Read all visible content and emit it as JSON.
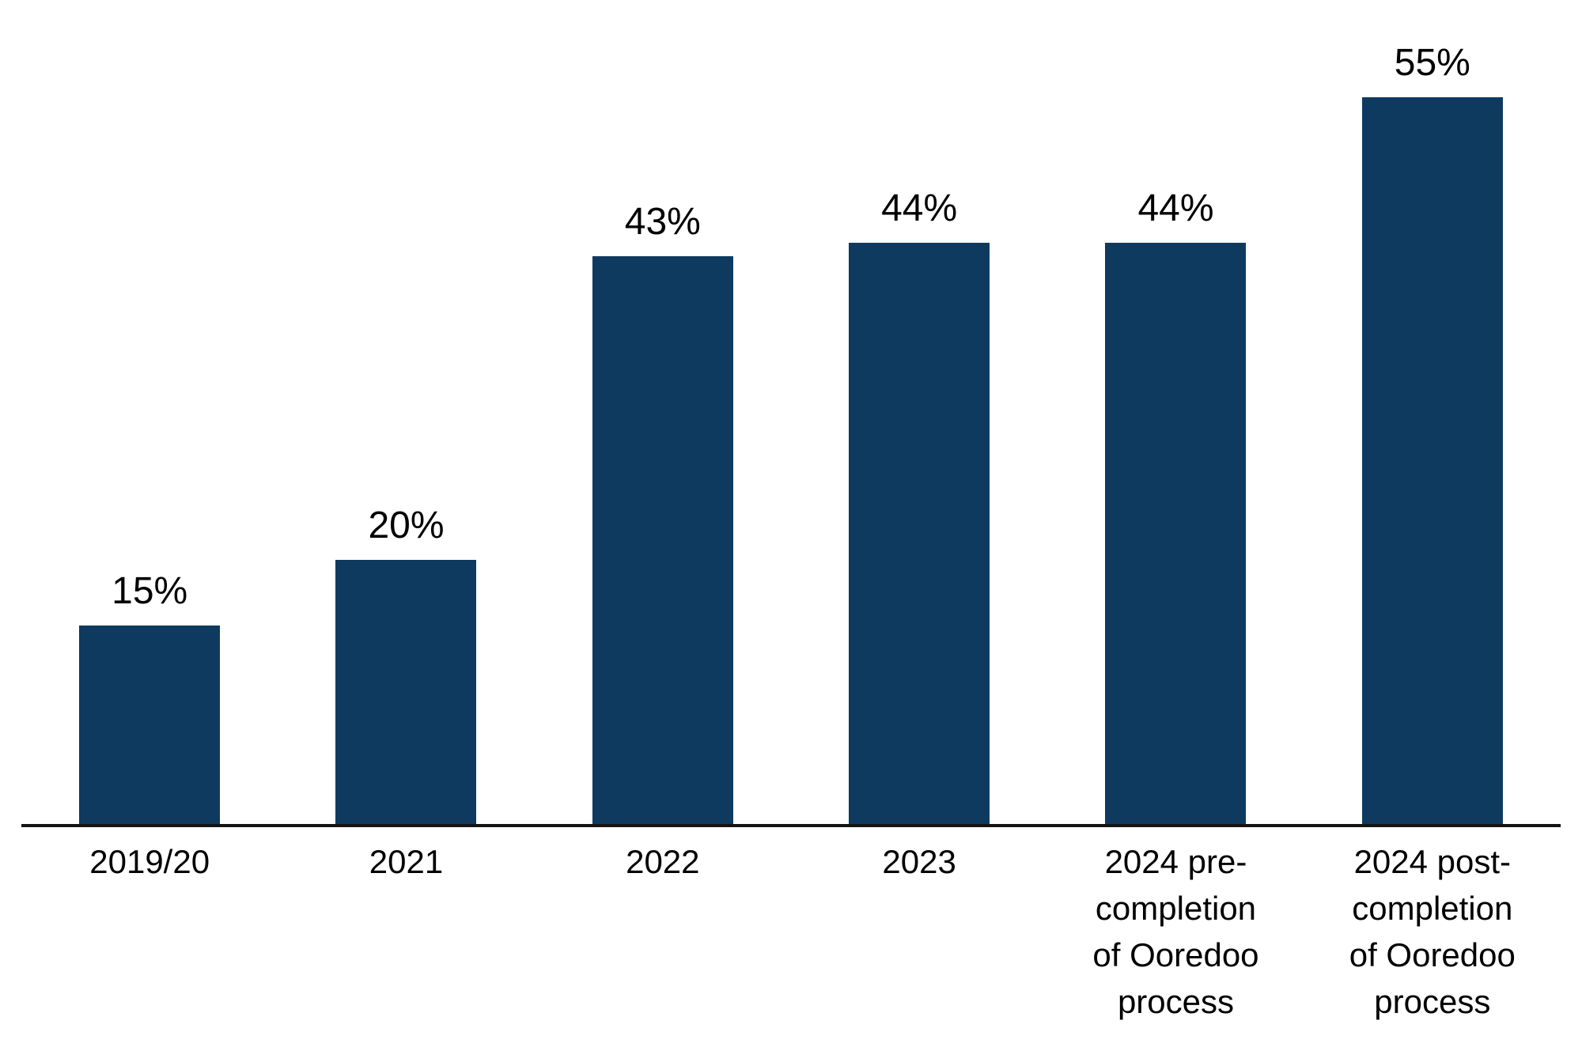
{
  "chart_data": {
    "type": "bar",
    "title": "",
    "xlabel": "",
    "ylabel": "",
    "categories": [
      "2019/20",
      "2021",
      "2022",
      "2023",
      "2024 pre-completion of Ooredoo process",
      "2024 post-completion of Ooredoo process"
    ],
    "categories_wrapped": [
      [
        "2019/20"
      ],
      [
        "2021"
      ],
      [
        "2022"
      ],
      [
        "2023"
      ],
      [
        "2024 pre-",
        "completion",
        "of Ooredoo",
        "process"
      ],
      [
        "2024 post-",
        "completion",
        "of Ooredoo",
        "process"
      ]
    ],
    "values": [
      15,
      20,
      43,
      44,
      44,
      55
    ],
    "data_labels": [
      "15%",
      "20%",
      "43%",
      "44%",
      "44%",
      "55%"
    ],
    "unit": "%",
    "ylim": [
      0,
      60
    ],
    "grid": false,
    "legend": "none",
    "y_axis_visible": false,
    "x_axis_visible": true,
    "bar_color": "#0E3A5F",
    "axis_color": "#141414",
    "label_color": "#000000",
    "background_color": "#FFFFFF"
  }
}
